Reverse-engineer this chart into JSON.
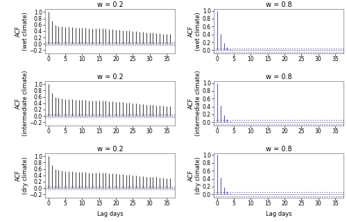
{
  "titles_left": [
    "w = 0.2",
    "w = 0.2",
    "w = 0.2"
  ],
  "titles_right": [
    "w = 0.8",
    "w = 0.8",
    "w = 0.8"
  ],
  "ylabels_left": [
    "ACF\n(wet climate)",
    "ACF\n(intermediate climate)",
    "ACF\n(dry climate)"
  ],
  "ylabels_right": [
    "ACF\n(wet climate)",
    "ACF\n(intermediate climate)",
    "ACF\n(dry climate)"
  ],
  "xlabel": "Lag days",
  "n_lags": 37,
  "bar_color_left": "#444444",
  "bar_color_right": "#5555aa",
  "ci_color": "#6666bb",
  "ci_value": 0.05,
  "acf_slow_wet": [
    1.0,
    0.72,
    0.6,
    0.56,
    0.54,
    0.53,
    0.52,
    0.52,
    0.51,
    0.51,
    0.5,
    0.5,
    0.49,
    0.49,
    0.49,
    0.49,
    0.48,
    0.48,
    0.47,
    0.46,
    0.45,
    0.44,
    0.43,
    0.42,
    0.41,
    0.4,
    0.39,
    0.38,
    0.37,
    0.36,
    0.35,
    0.35,
    0.34,
    0.33,
    0.32,
    0.31,
    0.3
  ],
  "acf_slow_inter": [
    1.0,
    0.72,
    0.6,
    0.56,
    0.54,
    0.53,
    0.52,
    0.52,
    0.51,
    0.51,
    0.5,
    0.5,
    0.49,
    0.49,
    0.49,
    0.49,
    0.48,
    0.48,
    0.47,
    0.46,
    0.45,
    0.44,
    0.43,
    0.42,
    0.41,
    0.4,
    0.39,
    0.38,
    0.37,
    0.36,
    0.35,
    0.35,
    0.34,
    0.33,
    0.32,
    0.31,
    0.3
  ],
  "acf_slow_dry": [
    1.0,
    0.72,
    0.6,
    0.56,
    0.54,
    0.53,
    0.52,
    0.52,
    0.51,
    0.51,
    0.5,
    0.5,
    0.49,
    0.49,
    0.49,
    0.49,
    0.48,
    0.48,
    0.47,
    0.46,
    0.45,
    0.44,
    0.43,
    0.42,
    0.41,
    0.4,
    0.39,
    0.38,
    0.37,
    0.36,
    0.35,
    0.35,
    0.34,
    0.33,
    0.32,
    0.31,
    0.3
  ],
  "acf_fast_wet": [
    1.0,
    0.42,
    0.18,
    0.07,
    0.03,
    0.01,
    0.01,
    0.005,
    0.005,
    0.005,
    0.003,
    0.002,
    0.002,
    0.002,
    0.002,
    0.002,
    0.002,
    0.002,
    0.002,
    0.002,
    0.002,
    0.002,
    0.002,
    0.002,
    0.002,
    0.002,
    0.002,
    0.002,
    0.002,
    0.002,
    0.002,
    0.002,
    0.002,
    0.002,
    0.002,
    0.002,
    0.002
  ],
  "acf_fast_inter": [
    1.0,
    0.42,
    0.18,
    0.07,
    0.03,
    0.01,
    0.01,
    0.005,
    0.005,
    0.005,
    0.003,
    0.002,
    0.002,
    0.002,
    0.002,
    0.002,
    0.002,
    0.002,
    0.002,
    0.002,
    0.002,
    0.002,
    0.002,
    0.002,
    0.002,
    0.002,
    0.002,
    0.002,
    0.002,
    0.002,
    0.002,
    0.002,
    0.002,
    0.002,
    0.002,
    0.002,
    0.002
  ],
  "acf_fast_dry": [
    1.0,
    0.42,
    0.18,
    0.07,
    0.03,
    0.01,
    0.01,
    0.005,
    0.005,
    0.005,
    0.003,
    0.002,
    0.002,
    0.002,
    0.002,
    0.002,
    0.002,
    0.002,
    0.002,
    0.002,
    0.002,
    0.002,
    0.002,
    0.002,
    0.002,
    0.002,
    0.002,
    0.002,
    0.002,
    0.002,
    0.002,
    0.002,
    0.002,
    0.002,
    0.002,
    0.002,
    0.002
  ],
  "ylim_slow": [
    -0.3,
    1.1
  ],
  "ylim_fast": [
    -0.08,
    1.05
  ],
  "yticks_slow": [
    -0.2,
    0.0,
    0.2,
    0.4,
    0.6,
    0.8,
    1.0
  ],
  "yticks_fast": [
    0.0,
    0.2,
    0.4,
    0.6,
    0.8,
    1.0
  ],
  "bg_color": "#ffffff",
  "title_fontsize": 7,
  "label_fontsize": 6,
  "tick_fontsize": 5.5,
  "spine_color": "#888888"
}
